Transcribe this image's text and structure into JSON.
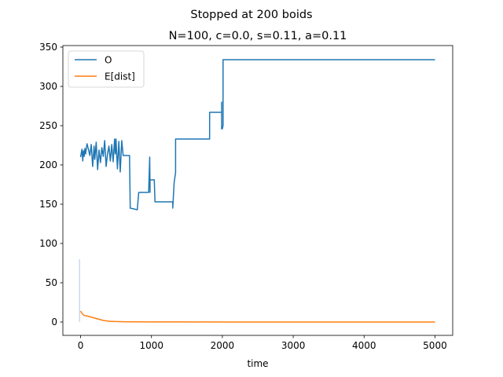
{
  "suptitle": "Stopped at 200 boids",
  "chart_data": {
    "type": "line",
    "title": "N=100, c=0.0, s=0.11, a=0.11",
    "xlabel": "time",
    "ylabel": "",
    "xlim": [
      -250,
      5250
    ],
    "ylim": [
      -17,
      352
    ],
    "xticks": [
      0,
      1000,
      2000,
      3000,
      4000,
      5000
    ],
    "yticks": [
      0,
      50,
      100,
      150,
      200,
      250,
      300,
      350
    ],
    "grid": false,
    "legend_position": "upper left",
    "series": [
      {
        "name": "O",
        "color": "#1f77b4",
        "x": [
          0,
          20,
          30,
          40,
          50,
          60,
          70,
          90,
          110,
          130,
          150,
          170,
          190,
          200,
          220,
          240,
          260,
          280,
          300,
          320,
          340,
          360,
          380,
          400,
          420,
          440,
          460,
          480,
          490,
          500,
          520,
          540,
          560,
          580,
          600,
          600,
          690,
          700,
          700,
          800,
          820,
          840,
          840,
          960,
          975,
          980,
          980,
          1000,
          1040,
          1050,
          1050,
          1300,
          1300,
          1320,
          1340,
          1340,
          1820,
          1820,
          1990,
          1990,
          1990,
          2000,
          2010,
          2010,
          2010,
          5000
        ],
        "y": [
          210,
          220,
          205,
          218,
          211,
          221,
          214,
          227,
          220,
          212,
          226,
          198,
          224,
          207,
          229,
          194,
          219,
          203,
          222,
          211,
          231,
          198,
          214,
          224,
          205,
          226,
          204,
          233,
          214,
          233,
          195,
          230,
          191,
          231,
          212,
          212,
          212,
          145,
          145,
          143,
          165,
          165,
          165,
          165,
          210,
          165,
          181,
          181,
          181,
          153,
          153,
          153,
          145,
          178,
          190,
          233,
          233,
          267,
          267,
          280,
          246,
          246,
          250,
          334,
          334,
          334
        ]
      },
      {
        "name": "E[dist]",
        "color": "#ff7f0e",
        "x": [
          0,
          20,
          40,
          60,
          80,
          120,
          160,
          200,
          240,
          280,
          320,
          360,
          400,
          450,
          500,
          550,
          600,
          700,
          800,
          1000,
          1500,
          2000,
          3000,
          4000,
          5000
        ],
        "y": [
          14,
          11,
          9,
          8,
          8,
          7,
          6,
          5,
          4,
          3,
          2,
          1.5,
          1,
          0.8,
          0.6,
          0.5,
          0.4,
          0.3,
          0.2,
          0.1,
          0.05,
          0,
          0,
          0,
          0
        ]
      }
    ]
  }
}
